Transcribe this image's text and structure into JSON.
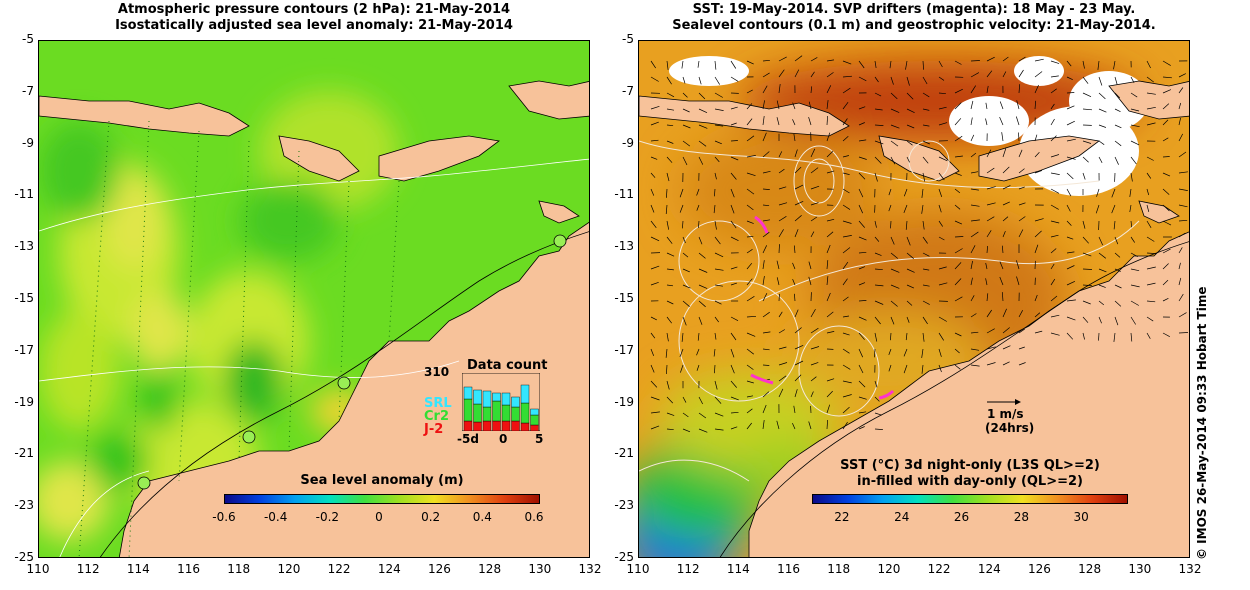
{
  "left_panel": {
    "title_line1": "Atmospheric pressure contours (2 hPa): 21-May-2014",
    "title_line2": "Isostatically adjusted sea level anomaly: 21-May-2014",
    "colorbar_title": "Sea level anomaly (m)",
    "colorbar_ticks": [
      "-0.6",
      "-0.4",
      "-0.2",
      "0",
      "0.2",
      "0.4",
      "0.6"
    ],
    "data_count": {
      "title": "Data count",
      "max_label": "310",
      "satellites": [
        {
          "name": "SRL",
          "color": "#33e6ff"
        },
        {
          "name": "Cr2",
          "color": "#33dd33"
        },
        {
          "name": "J-2",
          "color": "#ee1111"
        }
      ],
      "x_ticks": [
        "-5d",
        "0",
        "5"
      ]
    }
  },
  "right_panel": {
    "title_line1": "SST: 19-May-2014. SVP drifters (magenta): 18 May - 23 May.",
    "title_line2": "Sealevel contours (0.1 m) and geostrophic velocity: 21-May-2014.",
    "vector_scale": "1 m/s",
    "vector_scale_note": "(24hrs)",
    "colorbar_title_line1": "SST (°C)  3d night-only (L3S QL>=2)",
    "colorbar_title_line2": "in-filled with day-only (QL>=2)",
    "colorbar_ticks": [
      "22",
      "24",
      "26",
      "28",
      "30"
    ]
  },
  "y_ticks": [
    "-5",
    "-7",
    "-9",
    "-11",
    "-13",
    "-15",
    "-17",
    "-19",
    "-21",
    "-23",
    "-25"
  ],
  "x_ticks": [
    "110",
    "112",
    "114",
    "116",
    "118",
    "120",
    "122",
    "124",
    "126",
    "128",
    "130",
    "132"
  ],
  "credit": "© IMOS 26-May-2014 09:33 Hobart Time",
  "colors": {
    "land": "#f7c29a",
    "sla_base": "#66dd22",
    "sst_base": "#e8a020",
    "drifter": "#ff33cc",
    "cloud": "#ffffff"
  }
}
